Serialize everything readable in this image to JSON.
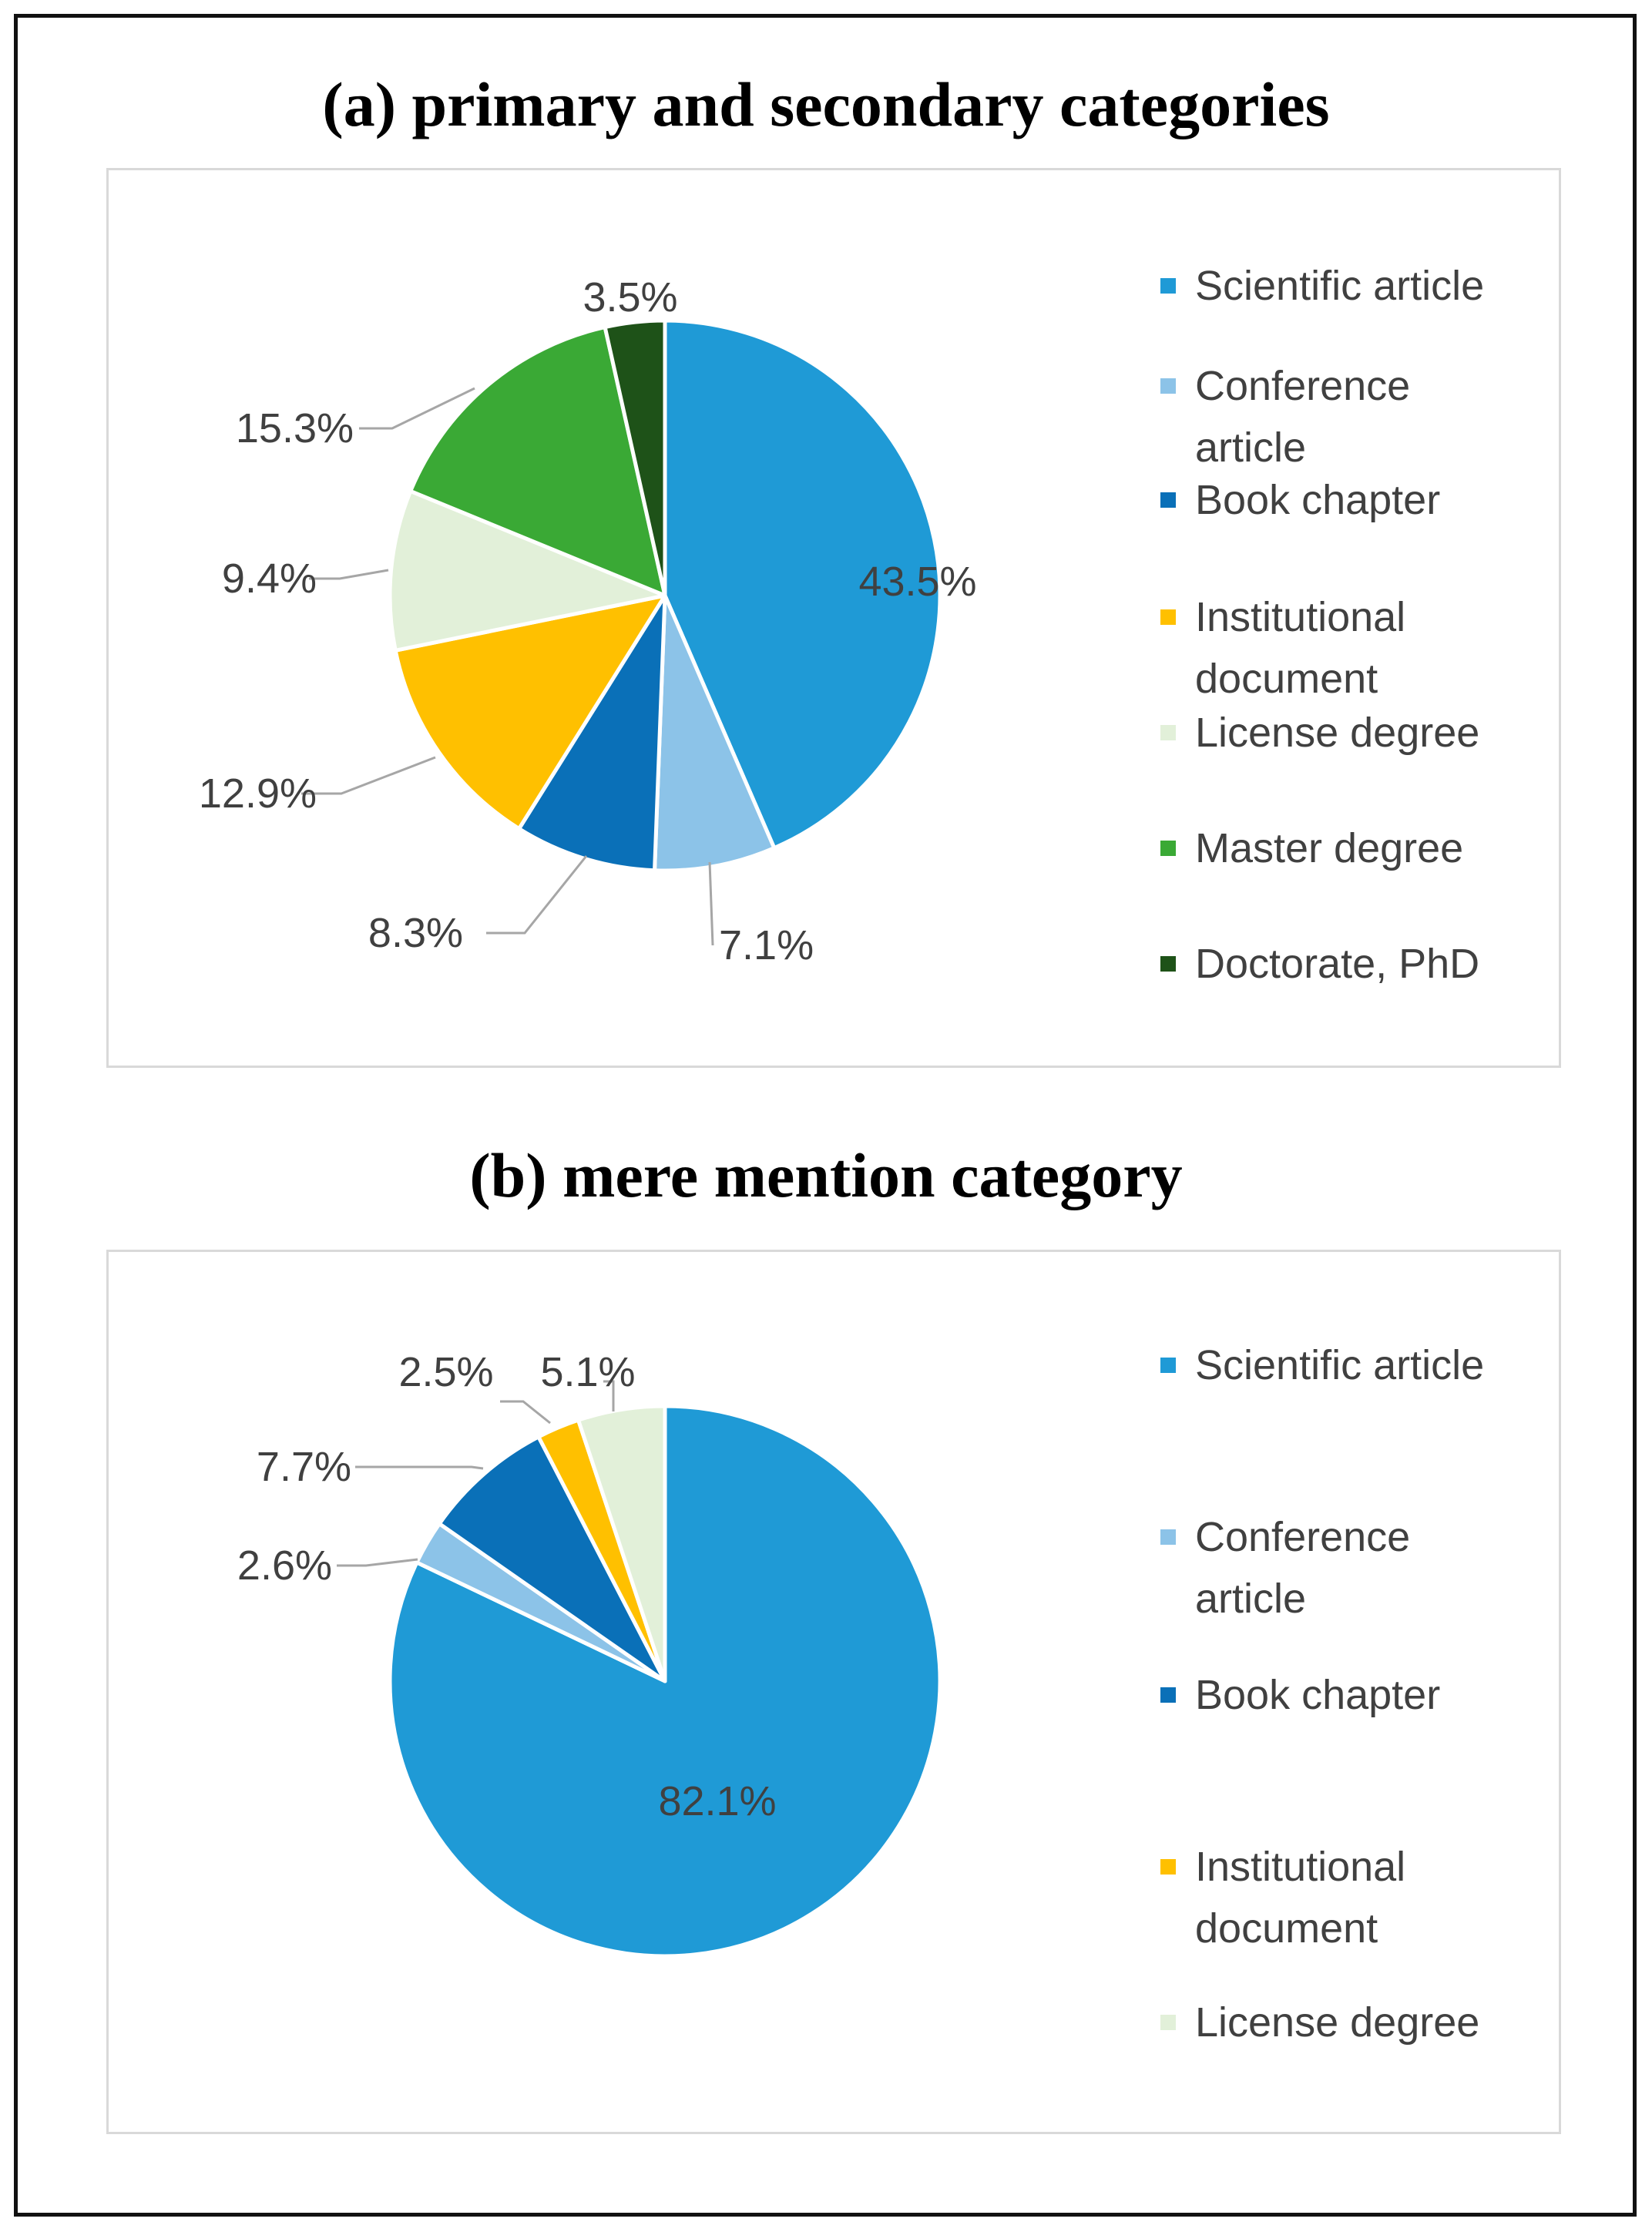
{
  "figure": {
    "title_a": "(a) primary and secondary categories",
    "title_b": "(b) mere mention category"
  },
  "chart_data": [
    {
      "type": "pie",
      "title": "(a) primary and secondary categories",
      "categories": [
        "Scientific article",
        "Conference article",
        "Book chapter",
        "Institutional document",
        "License degree",
        "Master degree",
        "Doctorate, PhD"
      ],
      "values": [
        43.5,
        7.1,
        8.3,
        12.9,
        9.4,
        15.3,
        3.5
      ],
      "value_labels": [
        "43.5%",
        "7.1%",
        "8.3%",
        "12.9%",
        "9.4%",
        "15.3%",
        "3.5%"
      ],
      "colors": [
        "#1f9ad6",
        "#8cc3e8",
        "#0a70b8",
        "#ffc000",
        "#e2f0d9",
        "#3aa935",
        "#1e5218"
      ],
      "legend_lines": [
        [
          "Scientific article"
        ],
        [
          "Conference",
          "article"
        ],
        [
          "Book chapter"
        ],
        [
          "Institutional",
          "document"
        ],
        [
          "License degree"
        ],
        [
          "Master degree"
        ],
        [
          "Doctorate, PhD"
        ]
      ],
      "legend_position": "right",
      "start_angle_deg": 0,
      "direction": "clockwise"
    },
    {
      "type": "pie",
      "title": "(b) mere mention category",
      "categories": [
        "Scientific article",
        "Conference article",
        "Book chapter",
        "Institutional document",
        "License degree"
      ],
      "values": [
        82.1,
        2.6,
        7.7,
        2.5,
        5.1
      ],
      "value_labels": [
        "82.1%",
        "2.6%",
        "7.7%",
        "2.5%",
        "5.1%"
      ],
      "colors": [
        "#1f9ad6",
        "#8cc3e8",
        "#0a70b8",
        "#ffc000",
        "#e2f0d9"
      ],
      "legend_lines": [
        [
          "Scientific article"
        ],
        [
          "Conference",
          "article"
        ],
        [
          "Book chapter"
        ],
        [
          "Institutional",
          "document"
        ],
        [
          "License degree"
        ]
      ],
      "legend_position": "right",
      "start_angle_deg": 0,
      "direction": "clockwise"
    }
  ]
}
